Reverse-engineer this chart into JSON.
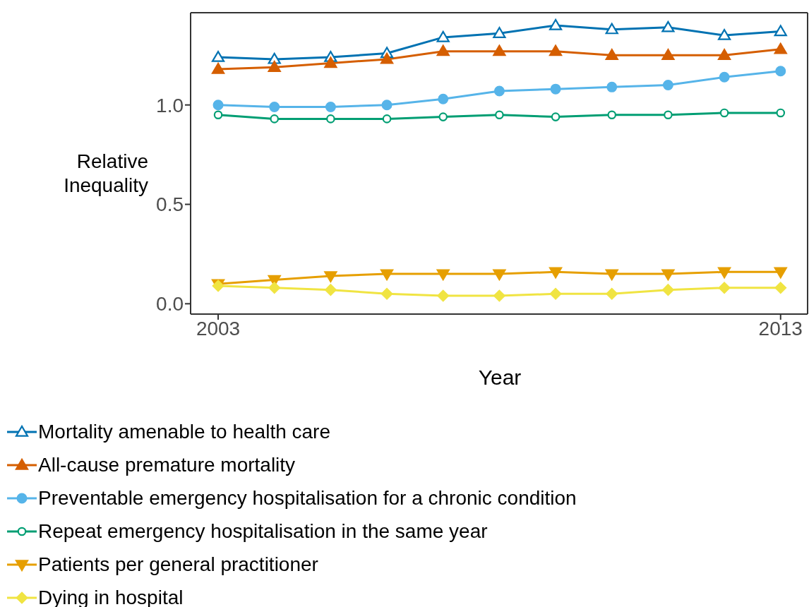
{
  "chart_data": {
    "type": "line",
    "xlabel": "Year",
    "ylabel": "Relative Inequality",
    "x": [
      2003,
      2004,
      2005,
      2006,
      2007,
      2008,
      2009,
      2010,
      2011,
      2012,
      2013
    ],
    "xlim": [
      2002.51,
      2013.48
    ],
    "xticks": [
      2003,
      2013
    ],
    "ylim": [
      -0.052,
      1.464
    ],
    "yticks": [
      {
        "value": 0,
        "label": "0.0"
      },
      {
        "value": 0.5,
        "label": "0.5"
      },
      {
        "value": 1,
        "label": "1.0"
      }
    ],
    "grid": false,
    "legend": "bottom",
    "line_style": "solid",
    "series": [
      {
        "name": "Mortality amenable to health care",
        "color": "#0072b2",
        "marker": "triangle_open",
        "values": [
          1.24,
          1.23,
          1.24,
          1.26,
          1.34,
          1.36,
          1.4,
          1.38,
          1.39,
          1.35,
          1.37
        ]
      },
      {
        "name": "All-cause premature mortality",
        "color": "#d55e00",
        "marker": "triangle",
        "values": [
          1.18,
          1.19,
          1.21,
          1.23,
          1.27,
          1.27,
          1.27,
          1.25,
          1.25,
          1.25,
          1.28
        ]
      },
      {
        "name": "Preventable emergency hospitalisation for a chronic condition",
        "color": "#56b4e9",
        "marker": "circle",
        "values": [
          1.0,
          0.99,
          0.99,
          1.0,
          1.03,
          1.07,
          1.08,
          1.09,
          1.1,
          1.14,
          1.17
        ]
      },
      {
        "name": "Repeat emergency hospitalisation in the same year",
        "color": "#009e73",
        "marker": "circle_open",
        "values": [
          0.95,
          0.93,
          0.93,
          0.93,
          0.94,
          0.95,
          0.94,
          0.95,
          0.95,
          0.96,
          0.96
        ]
      },
      {
        "name": "Patients per general practitioner",
        "color": "#e69f00",
        "marker": "triangle_down",
        "values": [
          0.1,
          0.12,
          0.14,
          0.15,
          0.15,
          0.15,
          0.16,
          0.15,
          0.15,
          0.16,
          0.16
        ]
      },
      {
        "name": "Dying in hospital",
        "color": "#f0e442",
        "marker": "diamond",
        "values": [
          0.09,
          0.08,
          0.07,
          0.05,
          0.04,
          0.04,
          0.05,
          0.05,
          0.07,
          0.08,
          0.08
        ]
      }
    ]
  }
}
